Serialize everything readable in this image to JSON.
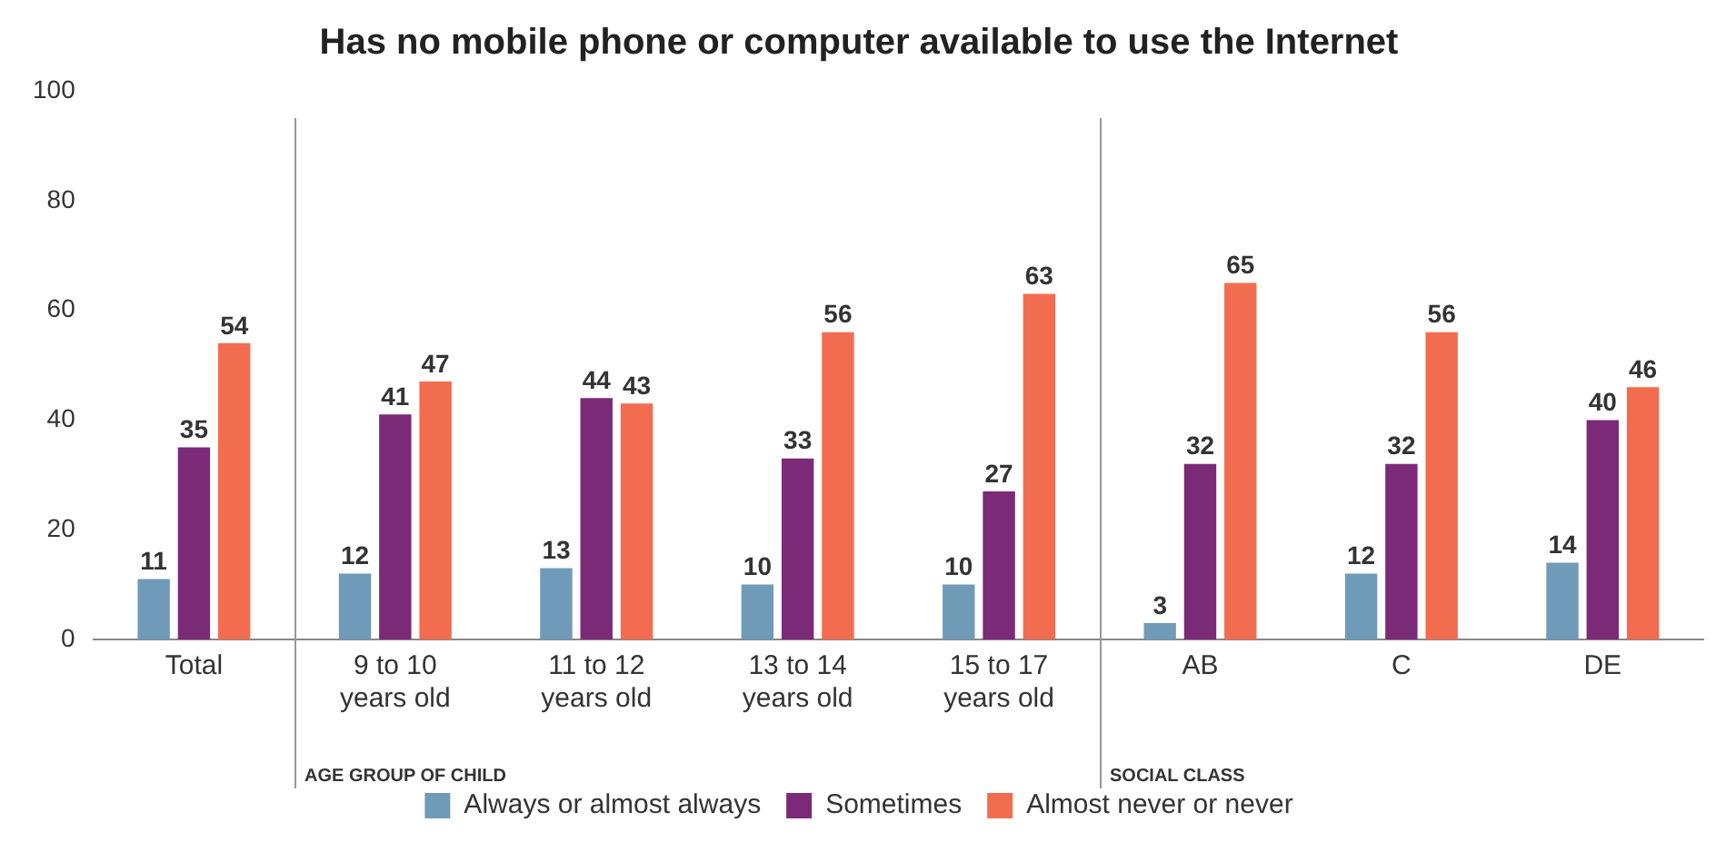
{
  "chart_data": {
    "type": "bar",
    "title": "Has no mobile phone or computer available to use the Internet",
    "categories": [
      "Total",
      "9 to 10 years old",
      "11 to 12 years old",
      "13 to 14 years old",
      "15 to 17 years old",
      "AB",
      "C",
      "DE"
    ],
    "series": [
      {
        "name": "Always or almost always",
        "color": "#6f9bb8",
        "values": [
          11,
          12,
          13,
          10,
          10,
          3,
          12,
          14
        ]
      },
      {
        "name": "Sometimes",
        "color": "#7b2a78",
        "values": [
          35,
          41,
          44,
          33,
          27,
          32,
          32,
          40
        ]
      },
      {
        "name": "Almost never or never",
        "color": "#f26d50",
        "values": [
          54,
          47,
          43,
          56,
          63,
          65,
          56,
          46
        ]
      }
    ],
    "ylim": [
      0,
      100
    ],
    "yticks": [
      0,
      20,
      40,
      60,
      80,
      100
    ],
    "grid": false,
    "legend": "bottom",
    "data_labels": true,
    "annotations": [
      "AGE GROUP OF CHILD",
      "SOCIAL CLASS"
    ]
  }
}
